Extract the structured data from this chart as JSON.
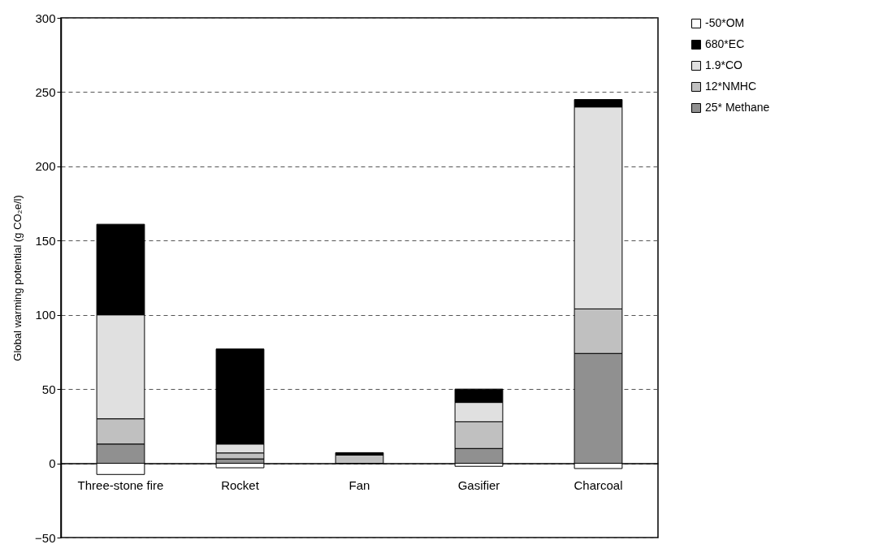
{
  "chart_data": {
    "type": "bar",
    "stacked": true,
    "ylabel": "Global warming potential (g CO₂e/l)",
    "categories": [
      "Three-stone fire",
      "Rocket",
      "Fan",
      "Gasifier",
      "Charcoal"
    ],
    "series": [
      {
        "name": "25* Methane",
        "color": "#909090",
        "values": [
          13,
          3,
          null,
          10,
          74
        ]
      },
      {
        "name": "12*NMHC",
        "color": "#c0c0c0",
        "values": [
          17,
          4,
          5.5,
          18,
          30
        ]
      },
      {
        "name": "1.9*CO",
        "color": "#e0e0e0",
        "values": [
          70,
          6,
          null,
          13,
          136
        ]
      },
      {
        "name": "680*EC",
        "color": "#000000",
        "values": [
          61,
          64,
          1.7,
          9,
          5
        ]
      },
      {
        "name": "-50*OM",
        "color": "#ffffff",
        "values": [
          -7.5,
          -3,
          null,
          -2,
          -3.5
        ]
      }
    ],
    "ylim": [
      -50,
      300
    ],
    "yticks": [
      -50,
      0,
      50,
      100,
      150,
      200,
      250,
      300
    ],
    "grid": "y",
    "legend": "right"
  }
}
